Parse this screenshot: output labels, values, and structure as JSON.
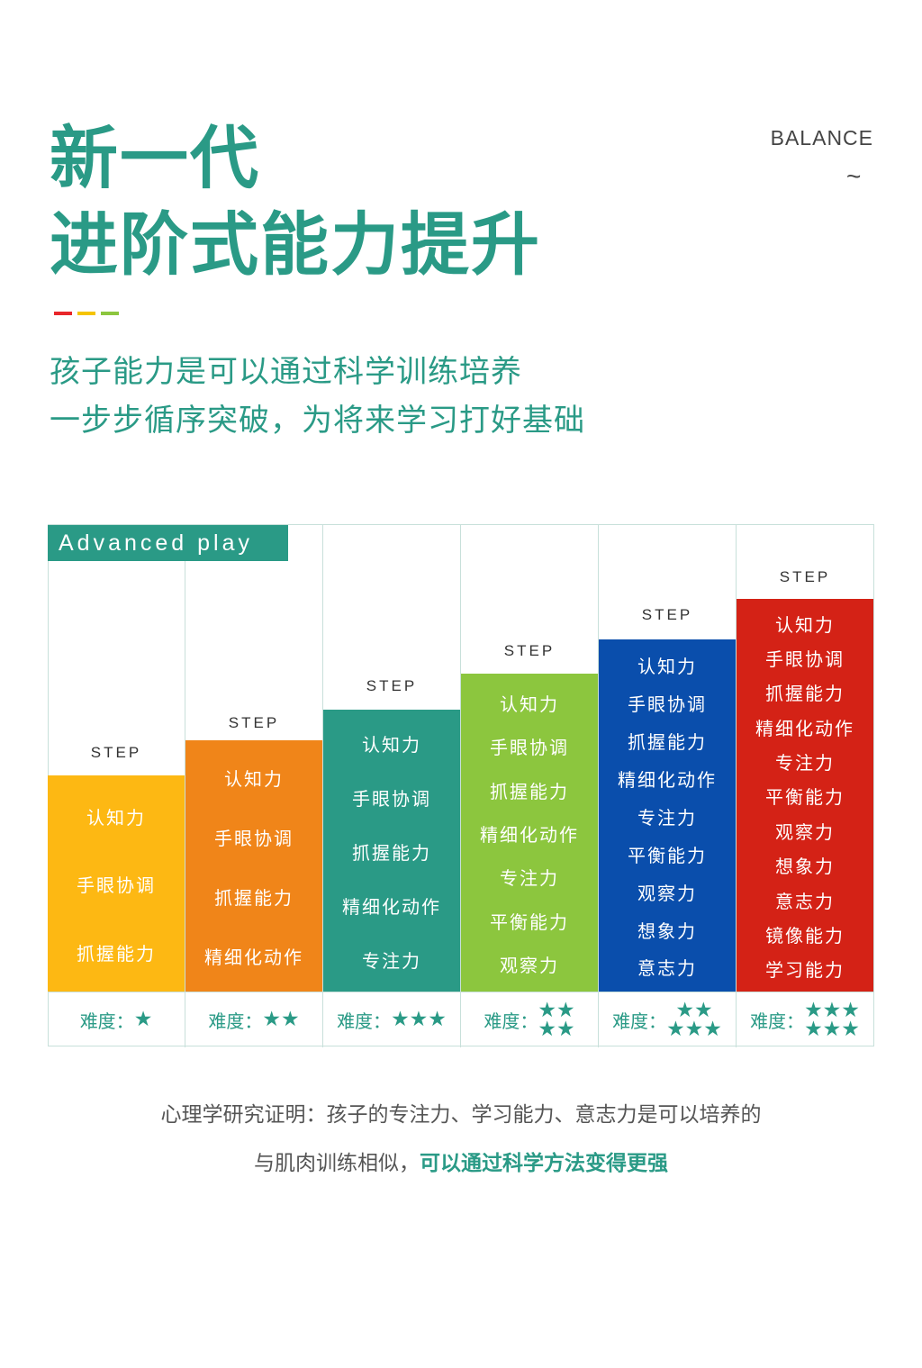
{
  "header": {
    "title_line1": "新一代",
    "title_line2": "进阶式能力提升",
    "balance": "BALANCE",
    "tilde": "~",
    "accent_colors": [
      "#e8262a",
      "#f5c400",
      "#8cc63e"
    ],
    "subtitle_line1": "孩子能力是可以通过科学训练培养",
    "subtitle_line2": "一步步循序突破，为将来学习打好基础"
  },
  "table": {
    "badge": "Advanced play",
    "step_label": "STEP",
    "difficulty_label": "难度：",
    "steps": [
      {
        "color": "#fdb813",
        "stars": 1,
        "star_rows": [
          "★"
        ],
        "skills": [
          "认知力",
          "手眼协调",
          "抓握能力"
        ]
      },
      {
        "color": "#f08519",
        "stars": 2,
        "star_rows": [
          "★★"
        ],
        "skills": [
          "认知力",
          "手眼协调",
          "抓握能力",
          "精细化动作"
        ]
      },
      {
        "color": "#2a9a86",
        "stars": 3,
        "star_rows": [
          "★★★"
        ],
        "skills": [
          "认知力",
          "手眼协调",
          "抓握能力",
          "精细化动作",
          "专注力"
        ]
      },
      {
        "color": "#8cc63e",
        "stars": 4,
        "star_rows": [
          "★★",
          "★★"
        ],
        "skills": [
          "认知力",
          "手眼协调",
          "抓握能力",
          "精细化动作",
          "专注力",
          "平衡能力",
          "观察力"
        ]
      },
      {
        "color": "#0a4eac",
        "stars": 5,
        "star_rows": [
          "★★",
          "★★★"
        ],
        "skills": [
          "认知力",
          "手眼协调",
          "抓握能力",
          "精细化动作",
          "专注力",
          "平衡能力",
          "观察力",
          "想象力",
          "意志力"
        ]
      },
      {
        "color": "#d42216",
        "stars": 6,
        "star_rows": [
          "★★★",
          "★★★"
        ],
        "skills": [
          "认知力",
          "手眼协调",
          "抓握能力",
          "精细化动作",
          "专注力",
          "平衡能力",
          "观察力",
          "想象力",
          "意志力",
          "镜像能力",
          "学习能力"
        ]
      }
    ]
  },
  "footer": {
    "line1": "心理学研究证明：孩子的专注力、学习能力、意志力是可以培养的",
    "line2_plain": "与肌肉训练相似，",
    "line2_highlight": "可以通过科学方法变得更强"
  }
}
